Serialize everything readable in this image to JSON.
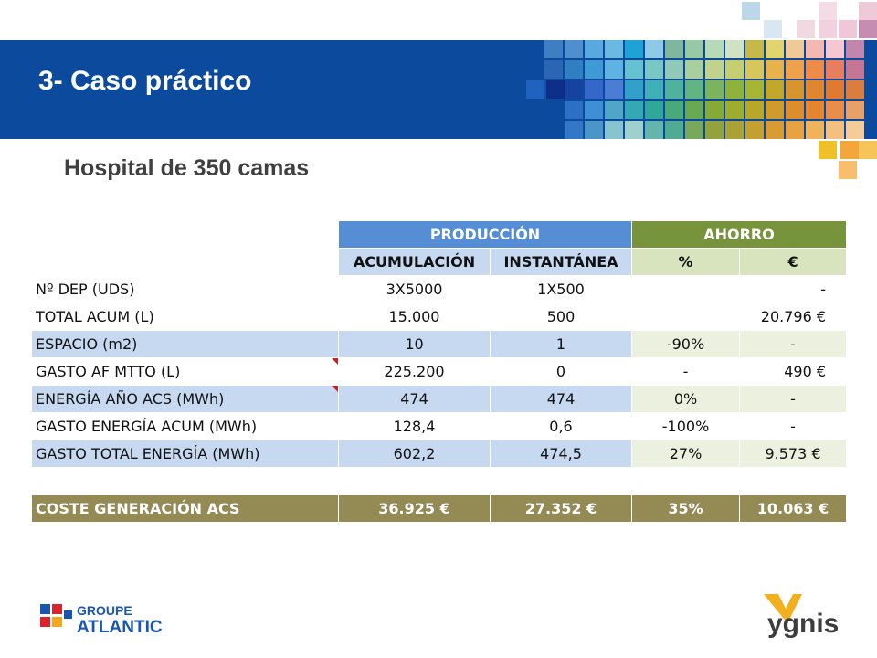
{
  "slide": {
    "title": "3- Caso práctico",
    "subtitle": "Hospital de 350 camas"
  },
  "table": {
    "header_groups": {
      "produccion": "PRODUCCIÓN",
      "ahorro": "AHORRO"
    },
    "sub_headers": {
      "acumulacion": "ACUMULACIÓN",
      "instantanea": "INSTANTÁNEA",
      "pct": "%",
      "eur": "€"
    },
    "rows": [
      {
        "label": "Nº DEP (UDS)",
        "acum": "3X5000",
        "inst": "1X500",
        "pct": "",
        "eur": "-"
      },
      {
        "label": "TOTAL ACUM (L)",
        "acum": "15.000",
        "inst": "500",
        "pct": "",
        "eur": "20.796 €"
      },
      {
        "label": "ESPACIO  (m2)",
        "acum": "10",
        "inst": "1",
        "pct": "-90%",
        "eur": "-"
      },
      {
        "label": "GASTO AF MTTO (L)",
        "acum": "225.200",
        "inst": "0",
        "pct": "-",
        "eur": "490 €"
      },
      {
        "label": "ENERGÍA AÑO ACS (MWh)",
        "acum": "474",
        "inst": "474",
        "pct": "0%",
        "eur": "-"
      },
      {
        "label": "GASTO ENERGÍA ACUM (MWh)",
        "acum": "128,4",
        "inst": "0,6",
        "pct": "-100%",
        "eur": "-"
      },
      {
        "label": "GASTO TOTAL ENERGÍA (MWh)",
        "acum": "602,2",
        "inst": "474,5",
        "pct": "27%",
        "eur": "9.573 €"
      }
    ],
    "total": {
      "label": "COSTE GENERACIÓN ACS",
      "acum": "36.925 €",
      "inst": "27.352 €",
      "pct": "35%",
      "eur": "10.063 €"
    }
  },
  "logos": {
    "left": {
      "line1": "GROUPE",
      "line2": "ATLANTIC"
    },
    "right": {
      "text": "ygnis"
    }
  },
  "colors": {
    "banner": "#0b4a9c",
    "header_blue": "#558ed5",
    "header_green": "#77933c",
    "light_blue": "#c6d9f1",
    "light_green": "#d7e4bd",
    "total_olive": "#948a54"
  }
}
